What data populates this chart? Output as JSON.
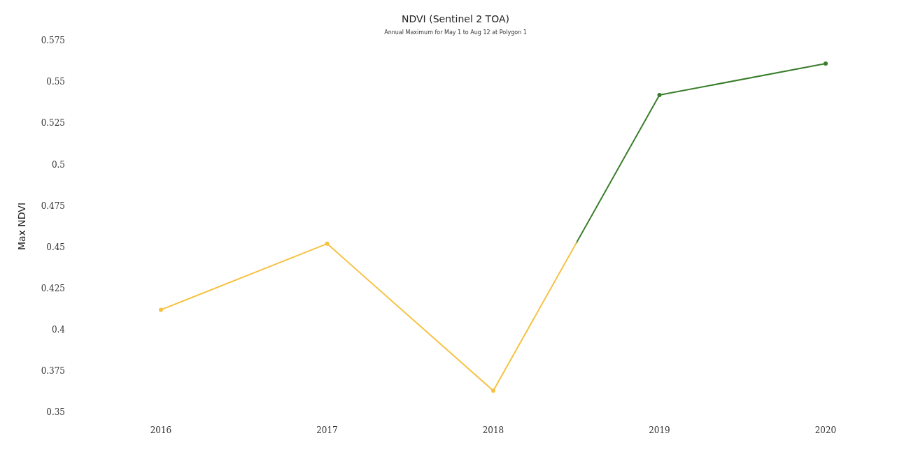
{
  "chart_data": {
    "type": "line",
    "title": "NDVI (Sentinel 2 TOA)",
    "subtitle": "Annual Maximum for May 1 to Aug 12 at Polygon 1",
    "ylabel": "Max NDVI",
    "categories": [
      "2016",
      "2017",
      "2018",
      "2019",
      "2020"
    ],
    "series": [
      {
        "values": [
          0.412,
          0.452,
          0.363,
          0.542,
          0.561
        ],
        "colors": [
          "#f5c242",
          "#f5c242",
          "#f5c242",
          "#3a7d2c",
          "#3a7d2c"
        ]
      }
    ],
    "ylim": [
      0.35,
      0.575
    ],
    "yticks": [
      0.35,
      0.375,
      0.4,
      0.425,
      0.45,
      0.475,
      0.5,
      0.525,
      0.55,
      0.575
    ],
    "grid": false,
    "marker": "circle"
  }
}
